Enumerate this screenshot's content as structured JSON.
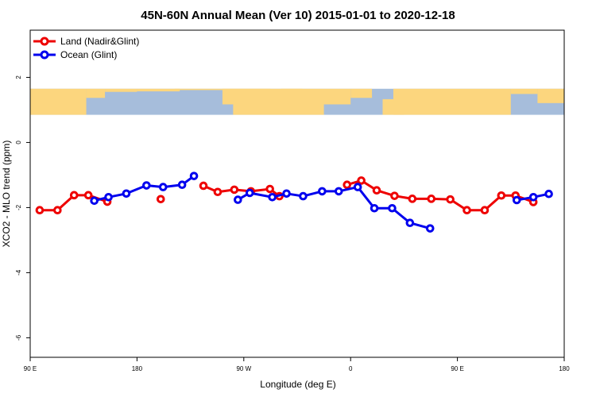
{
  "chart_data": {
    "type": "line",
    "title": "45N-60N Annual Mean (Ver 10)   2015-01-01 to 2020-12-18",
    "xlabel": "Longitude (deg E)",
    "ylabel": "XCO2 - MLO trend (ppm)",
    "x_ticks": [
      {
        "value": 90,
        "label": "90 E"
      },
      {
        "value": 180,
        "label": "180"
      },
      {
        "value": 270,
        "label": "90 W"
      },
      {
        "value": 360,
        "label": "0"
      },
      {
        "value": 450,
        "label": "90 E"
      },
      {
        "value": 540,
        "label": "180"
      }
    ],
    "y_ticks": [
      {
        "value": 2,
        "label": "2"
      },
      {
        "value": 0,
        "label": "0"
      },
      {
        "value": -2,
        "label": "-2"
      },
      {
        "value": -4,
        "label": "-4"
      },
      {
        "value": -6,
        "label": "-6"
      }
    ],
    "xlim": [
      90,
      540
    ],
    "ylim": [
      -6.6,
      3.45
    ],
    "grid": false,
    "legend_position": "top-left",
    "map_band": {
      "y_range": [
        0.85,
        1.65
      ],
      "land_color": "#fcd67e",
      "ocean_color": "#a6bddb"
    },
    "series": [
      {
        "name": "Land (Nadir&Glint)",
        "color": "#ee0000",
        "segments": [
          [
            [
              98,
              -2.08
            ],
            [
              113,
              -2.08
            ],
            [
              127,
              -1.62
            ],
            [
              139,
              -1.62
            ],
            [
              155,
              -1.82
            ]
          ],
          [
            [
              200,
              -1.74
            ]
          ],
          [
            [
              236,
              -1.33
            ],
            [
              248,
              -1.52
            ],
            [
              262,
              -1.45
            ],
            [
              276,
              -1.5
            ],
            [
              292,
              -1.43
            ],
            [
              300,
              -1.65
            ]
          ],
          [
            [
              357,
              -1.3
            ],
            [
              369,
              -1.17
            ],
            [
              382,
              -1.47
            ],
            [
              397,
              -1.64
            ],
            [
              412,
              -1.73
            ],
            [
              428,
              -1.73
            ],
            [
              444,
              -1.75
            ],
            [
              458,
              -2.08
            ],
            [
              473,
              -2.08
            ],
            [
              487,
              -1.63
            ],
            [
              499,
              -1.63
            ],
            [
              514,
              -1.83
            ]
          ]
        ]
      },
      {
        "name": "Ocean (Glint)",
        "color": "#0000ee",
        "segments": [
          [
            [
              144,
              -1.79
            ],
            [
              156,
              -1.68
            ],
            [
              171,
              -1.57
            ],
            [
              188,
              -1.32
            ],
            [
              202,
              -1.37
            ],
            [
              218,
              -1.3
            ],
            [
              228,
              -1.03
            ]
          ],
          [
            [
              265,
              -1.76
            ],
            [
              275,
              -1.55
            ],
            [
              294,
              -1.68
            ],
            [
              306,
              -1.57
            ],
            [
              320,
              -1.65
            ],
            [
              336,
              -1.5
            ],
            [
              350,
              -1.5
            ],
            [
              366,
              -1.37
            ],
            [
              380,
              -2.02
            ],
            [
              395,
              -2.02
            ],
            [
              410,
              -2.47
            ],
            [
              427,
              -2.64
            ]
          ],
          [
            [
              500,
              -1.77
            ],
            [
              514,
              -1.68
            ],
            [
              527,
              -1.58
            ]
          ]
        ]
      }
    ]
  }
}
